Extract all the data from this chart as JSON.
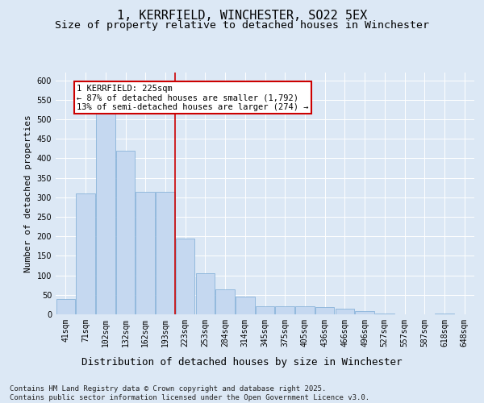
{
  "title": "1, KERRFIELD, WINCHESTER, SO22 5EX",
  "subtitle": "Size of property relative to detached houses in Winchester",
  "xlabel": "Distribution of detached houses by size in Winchester",
  "ylabel": "Number of detached properties",
  "categories": [
    "41sqm",
    "71sqm",
    "102sqm",
    "132sqm",
    "162sqm",
    "193sqm",
    "223sqm",
    "253sqm",
    "284sqm",
    "314sqm",
    "345sqm",
    "375sqm",
    "405sqm",
    "436sqm",
    "466sqm",
    "496sqm",
    "527sqm",
    "557sqm",
    "587sqm",
    "618sqm",
    "648sqm"
  ],
  "values": [
    40,
    310,
    515,
    420,
    315,
    315,
    195,
    105,
    65,
    45,
    20,
    20,
    20,
    18,
    15,
    8,
    3,
    1,
    1,
    3,
    1
  ],
  "bar_color": "#c5d8f0",
  "bar_edge_color": "#7baad4",
  "vline_color": "#cc0000",
  "vline_position": 5.5,
  "annotation_text": "1 KERRFIELD: 225sqm\n← 87% of detached houses are smaller (1,792)\n13% of semi-detached houses are larger (274) →",
  "annotation_box_facecolor": "#ffffff",
  "annotation_box_edgecolor": "#cc0000",
  "ylim": [
    0,
    620
  ],
  "yticks": [
    0,
    50,
    100,
    150,
    200,
    250,
    300,
    350,
    400,
    450,
    500,
    550,
    600
  ],
  "background_color": "#dce8f5",
  "plot_bg_color": "#dce8f5",
  "grid_color": "#ffffff",
  "footer": "Contains HM Land Registry data © Crown copyright and database right 2025.\nContains public sector information licensed under the Open Government Licence v3.0.",
  "title_fontsize": 11,
  "subtitle_fontsize": 9.5,
  "xlabel_fontsize": 9,
  "ylabel_fontsize": 8,
  "tick_fontsize": 7,
  "annotation_fontsize": 7.5,
  "footer_fontsize": 6.5
}
